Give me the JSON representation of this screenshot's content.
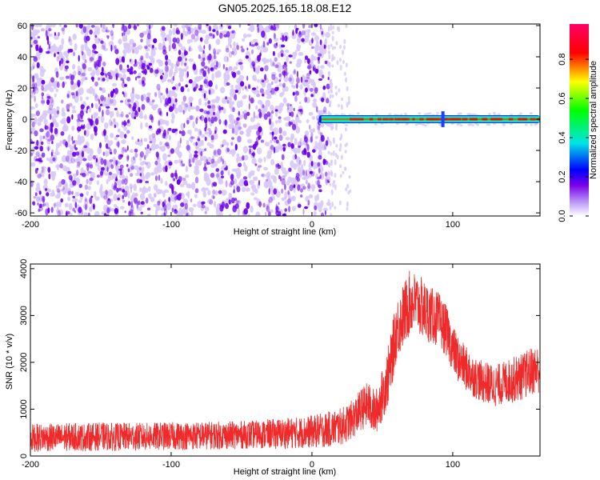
{
  "chart_data": [
    {
      "type": "heatmap",
      "title": "GN05.2025.165.18.08.E12",
      "xlabel": "Height of straight line (km)",
      "ylabel": "Frequency (Hz)",
      "xlim": [
        -200,
        162
      ],
      "ylim": [
        -62,
        61
      ],
      "x_ticks": [
        -200,
        -100,
        0,
        100
      ],
      "y_ticks": [
        -60,
        -40,
        -20,
        0,
        20,
        40,
        60
      ],
      "grid": false,
      "noise_region_x": [
        -200,
        12
      ],
      "noise_fade_x": [
        12,
        28
      ],
      "signal_band": {
        "x_start": 5,
        "x_end": 162,
        "frequency_center": 0,
        "frequency_halfwidth": 2,
        "peak_amplitude": 0.9
      },
      "signal_bright_spot_x": 93,
      "colorbar": {
        "label": "Normalized spectral amplitude",
        "range": [
          0,
          0.98
        ],
        "ticks": [
          0.0,
          0.2,
          0.4,
          0.6,
          0.8
        ],
        "tick_labels": [
          "0.0",
          "0.2",
          "0.4",
          "0.6",
          "0.8"
        ],
        "colors": [
          "#ffffff",
          "#7a00e8",
          "#0000ff",
          "#00e5e5",
          "#00ff00",
          "#ffff00",
          "#ff0000",
          "#ff0066"
        ]
      },
      "colors": {
        "noise_dots": "#6a00e8",
        "noise_faint": "#d8c8f8"
      }
    },
    {
      "type": "line",
      "xlabel": "Height of straight line (km)",
      "ylabel": "SNR (10 * v/v)",
      "xlim": [
        -200,
        162
      ],
      "ylim": [
        0,
        4100
      ],
      "x_ticks": [
        -200,
        -100,
        0,
        100
      ],
      "y_ticks": [
        0,
        1000,
        2000,
        3000,
        4000
      ],
      "grid": false,
      "series": [
        {
          "color": "#ee2a2a",
          "x": [
            -200,
            -190,
            -180,
            -170,
            -160,
            -150,
            -140,
            -130,
            -120,
            -110,
            -100,
            -90,
            -80,
            -70,
            -60,
            -50,
            -40,
            -30,
            -20,
            -10,
            0,
            10,
            20,
            25,
            30,
            35,
            40,
            45,
            50,
            55,
            60,
            65,
            70,
            75,
            80,
            85,
            90,
            95,
            100,
            105,
            110,
            115,
            120,
            125,
            130,
            135,
            140,
            145,
            150,
            155,
            160
          ],
          "values": [
            380,
            400,
            390,
            410,
            400,
            420,
            405,
            415,
            410,
            420,
            425,
            430,
            430,
            440,
            440,
            450,
            460,
            470,
            480,
            500,
            520,
            560,
            620,
            700,
            820,
            1000,
            1100,
            900,
            1300,
            1800,
            2700,
            3000,
            3300,
            3250,
            3100,
            3000,
            2900,
            2700,
            2300,
            2000,
            1850,
            1700,
            1600,
            1550,
            1500,
            1550,
            1600,
            1650,
            1700,
            1800,
            1850
          ],
          "noise_amplitude": [
            300,
            300,
            300,
            300,
            300,
            300,
            300,
            300,
            300,
            300,
            300,
            300,
            300,
            300,
            300,
            300,
            300,
            320,
            330,
            340,
            350,
            380,
            400,
            400,
            420,
            450,
            500,
            480,
            550,
            650,
            650,
            700,
            700,
            650,
            650,
            600,
            600,
            550,
            500,
            500,
            480,
            450,
            450,
            450,
            450,
            450,
            480,
            500,
            500,
            520,
            520
          ]
        }
      ]
    }
  ]
}
